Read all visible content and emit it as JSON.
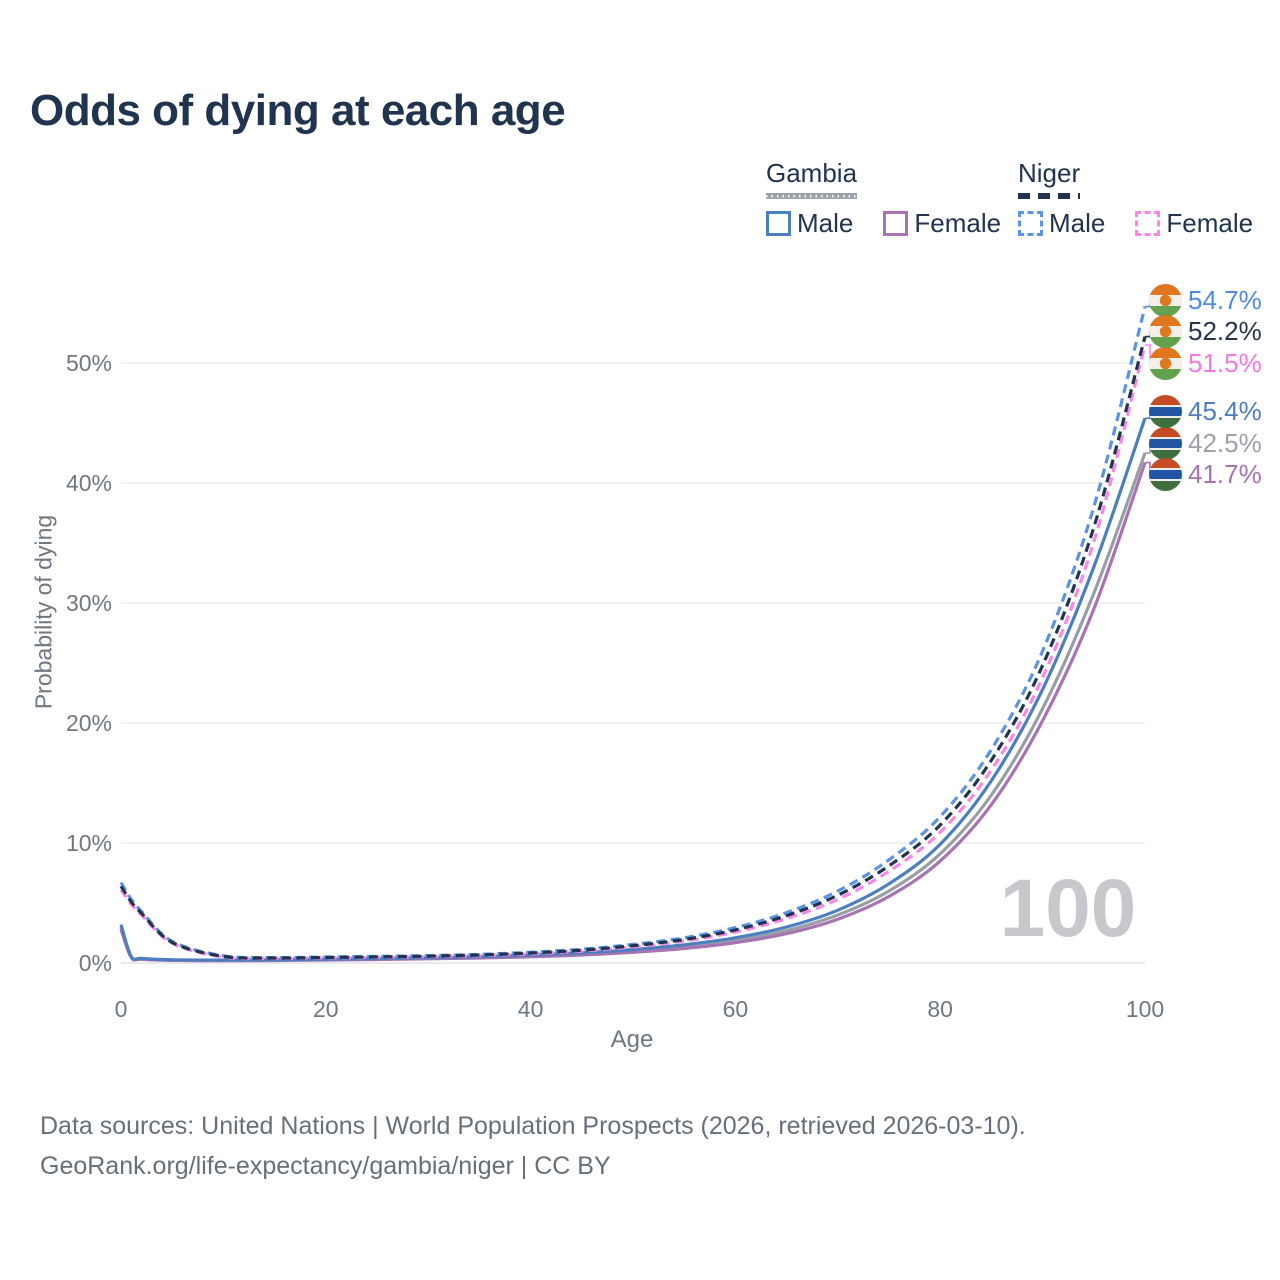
{
  "title": "Odds of dying at each age",
  "legend": {
    "groups": [
      {
        "label": "Gambia",
        "line_style": "solid",
        "line_color": "#9CA3AA",
        "items": [
          {
            "label": "Male",
            "color": "#4D7EBE",
            "line_style": "solid"
          },
          {
            "label": "Female",
            "color": "#A873B2",
            "line_style": "solid"
          }
        ]
      },
      {
        "label": "Niger",
        "line_style": "dashed",
        "line_color": "#22344E",
        "items": [
          {
            "label": "Male",
            "color": "#5C93E6",
            "line_style": "dashed"
          },
          {
            "label": "Female",
            "color": "#F887E8",
            "line_style": "dashed"
          }
        ]
      }
    ]
  },
  "chart_data": {
    "type": "line",
    "title": "Odds of dying at each age",
    "xlabel": "Age",
    "ylabel": "Probability of dying",
    "xlim": [
      0,
      100
    ],
    "ylim_percent": [
      0,
      55
    ],
    "grid": "horizontal",
    "legend_position": "top-right",
    "watermark": "100",
    "x_ticks": [
      {
        "value": 0,
        "label": "0"
      },
      {
        "value": 20,
        "label": "20"
      },
      {
        "value": 40,
        "label": "40"
      },
      {
        "value": 60,
        "label": "60"
      },
      {
        "value": 80,
        "label": "80"
      },
      {
        "value": 100,
        "label": "100"
      }
    ],
    "y_ticks": [
      {
        "value": 0,
        "label": "0%"
      },
      {
        "value": 10,
        "label": "10%"
      },
      {
        "value": 20,
        "label": "20%"
      },
      {
        "value": 30,
        "label": "30%"
      },
      {
        "value": 40,
        "label": "40%"
      },
      {
        "value": 50,
        "label": "50%"
      }
    ],
    "ages": [
      0,
      1,
      2,
      5,
      10,
      15,
      20,
      25,
      30,
      35,
      40,
      45,
      50,
      55,
      60,
      65,
      70,
      75,
      80,
      85,
      90,
      95,
      100
    ],
    "series": [
      {
        "id": "gambia-combined",
        "name": "Gambia Combined",
        "country": "Gambia",
        "group": "combined",
        "line_style": "solid",
        "color": "#999EA6",
        "values": [
          3.0,
          0.5,
          0.34,
          0.24,
          0.21,
          0.24,
          0.28,
          0.32,
          0.39,
          0.47,
          0.58,
          0.75,
          0.99,
          1.35,
          1.87,
          2.7,
          4.0,
          6.0,
          9.1,
          14.0,
          21.2,
          30.8,
          42.5
        ],
        "end_label": {
          "text": "42.5%",
          "color": "#9DA2A9",
          "flag": "gambia",
          "y": 443
        }
      },
      {
        "id": "gambia-female",
        "name": "Gambia Female",
        "country": "Gambia",
        "group": "female",
        "line_style": "solid",
        "color": "#A873B2",
        "values": [
          2.8,
          0.46,
          0.31,
          0.22,
          0.19,
          0.21,
          0.25,
          0.29,
          0.35,
          0.42,
          0.52,
          0.67,
          0.89,
          1.21,
          1.69,
          2.45,
          3.65,
          5.55,
          8.5,
          13.2,
          20.2,
          29.5,
          41.7
        ],
        "end_label": {
          "text": "41.7%",
          "color": "#A873B2",
          "flag": "gambia",
          "y": 474
        }
      },
      {
        "id": "gambia-male",
        "name": "Gambia Male",
        "country": "Gambia",
        "group": "male",
        "line_style": "solid",
        "color": "#4D7EBE",
        "values": [
          3.2,
          0.55,
          0.38,
          0.27,
          0.24,
          0.27,
          0.32,
          0.37,
          0.44,
          0.53,
          0.66,
          0.85,
          1.12,
          1.52,
          2.1,
          3.0,
          4.4,
          6.6,
          9.9,
          15.2,
          22.8,
          33.0,
          45.4
        ],
        "end_label": {
          "text": "45.4%",
          "color": "#4D7EBE",
          "flag": "gambia",
          "y": 411
        }
      },
      {
        "id": "niger-male",
        "name": "Niger Male",
        "country": "Niger",
        "group": "male",
        "line_style": "dashed",
        "color": "#5C93E6",
        "values": [
          6.7,
          5.3,
          4.3,
          1.8,
          0.6,
          0.45,
          0.5,
          0.55,
          0.62,
          0.72,
          0.9,
          1.15,
          1.55,
          2.1,
          2.95,
          4.2,
          6.0,
          8.6,
          12.2,
          17.8,
          26.0,
          38.0,
          54.7
        ],
        "end_label": {
          "text": "54.7%",
          "color": "#4E8AE4",
          "flag": "niger",
          "y": 300
        }
      },
      {
        "id": "niger-female",
        "name": "Niger Female",
        "country": "Niger",
        "group": "female",
        "line_style": "dashed",
        "color": "#F887E8",
        "values": [
          6.1,
          4.9,
          4.0,
          1.65,
          0.5,
          0.39,
          0.43,
          0.47,
          0.53,
          0.62,
          0.77,
          1.0,
          1.34,
          1.83,
          2.58,
          3.7,
          5.3,
          7.65,
          10.9,
          16.1,
          23.8,
          35.1,
          51.5
        ],
        "end_label": {
          "text": "51.5%",
          "color": "#F478E2",
          "flag": "niger",
          "y": 363
        }
      },
      {
        "id": "niger-combined",
        "name": "Niger Combined",
        "country": "Niger",
        "group": "combined",
        "line_style": "dashed",
        "color": "#22344E",
        "values": [
          6.4,
          5.1,
          4.15,
          1.72,
          0.55,
          0.42,
          0.46,
          0.51,
          0.57,
          0.67,
          0.83,
          1.07,
          1.44,
          1.96,
          2.76,
          3.95,
          5.65,
          8.1,
          11.5,
          16.9,
          24.8,
          36.3,
          52.2
        ],
        "end_label": {
          "text": "52.2%",
          "color": "#273449",
          "flag": "niger",
          "y": 331
        }
      }
    ]
  },
  "caption": {
    "line1": "Data sources: United Nations | World Population Prospects (2026, retrieved 2026-03-10).",
    "line2": "GeoRank.org/life-expectancy/gambia/niger | CC BY"
  }
}
